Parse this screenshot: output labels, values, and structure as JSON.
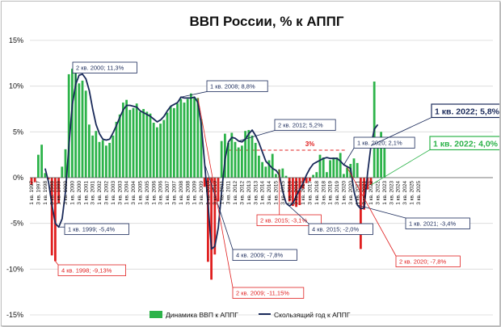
{
  "chart_data": {
    "type": "bar",
    "title": "ВВП России, % к АППГ",
    "ylim": [
      -15,
      15
    ],
    "y_ticks": [
      "-15%",
      "-10%",
      "-5%",
      "0%",
      "5%",
      "10%",
      "15%"
    ],
    "y_tick_values": [
      -15,
      -10,
      -5,
      0,
      5,
      10,
      15
    ],
    "grid": true,
    "legend_position": "bottom",
    "x_start": "1 кв. 1997",
    "x_tick_labels": [
      "1 кв. 1997",
      "3 кв. 1997",
      "1 кв. 1998",
      "3 кв. 1998",
      "1 кв. 1999",
      "3 кв. 1999",
      "1 кв. 2000",
      "3 кв. 2000",
      "1 кв. 2001",
      "3 кв. 2001",
      "1 кв. 2002",
      "3 кв. 2002",
      "1 кв. 2003",
      "3 кв. 2003",
      "1 кв. 2004",
      "3 кв. 2004",
      "1 кв. 2005",
      "3 кв. 2005",
      "1 кв. 2006",
      "3 кв. 2006",
      "1 кв. 2007",
      "3 кв. 2007",
      "1 кв. 2008",
      "3 кв. 2008",
      "1 кв. 2009",
      "3 кв. 2009",
      "1 кв. 2010",
      "3 кв. 2010",
      "1 кв. 2011",
      "3 кв. 2011",
      "1 кв. 2012",
      "3 кв. 2012",
      "1 кв. 2013",
      "3 кв. 2013",
      "1 кв. 2014",
      "3 кв. 2014",
      "1 кв. 2015",
      "3 кв. 2015",
      "1 кв. 2016",
      "3 кв. 2016",
      "1 кв. 2017",
      "3 кв. 2017",
      "1 кв. 2018",
      "3 кв. 2018",
      "1 кв. 2019",
      "3 кв. 2019",
      "1 кв. 2020",
      "3 кв. 2020",
      "1 кв. 2021",
      "3 кв. 2021",
      "1 кв. 2022",
      "3 кв. 2022",
      "1 кв. 2023",
      "3 кв. 2023",
      "1 кв. 2024",
      "3 кв. 2024",
      "1 кв. 2025",
      "3 кв. 2025"
    ],
    "series": [
      {
        "name": "Динамика ВВП к АППГ",
        "kind": "bar",
        "color_positive": "#2db34a",
        "color_negative": "#e02020",
        "values": [
          -0.8,
          -0.5,
          2.5,
          3.6,
          0.5,
          -0.2,
          -8.5,
          -9.13,
          -2.8,
          1.2,
          3.1,
          11.3,
          11.9,
          11.4,
          10.3,
          10.6,
          9.5,
          5.8,
          4.6,
          5.1,
          3.9,
          4.1,
          3.5,
          3.8,
          4.6,
          6.1,
          6.9,
          8.2,
          8.5,
          7.4,
          7.6,
          8.1,
          7.2,
          7.5,
          7.2,
          7.0,
          6.0,
          5.5,
          5.9,
          6.3,
          7.1,
          7.8,
          7.6,
          8.1,
          8.6,
          8.2,
          8.6,
          9.2,
          8.8,
          8.7,
          6.4,
          -1.0,
          -9.2,
          -11.15,
          -8.4,
          -2.6,
          4.0,
          4.8,
          3.8,
          4.9,
          3.9,
          3.3,
          3.5,
          5.1,
          5.2,
          4.6,
          3.8,
          2.4,
          1.7,
          1.2,
          1.9,
          2.6,
          0.4,
          0.9,
          1.0,
          0.2,
          -2.6,
          -3.1,
          -3.2,
          -3.0,
          -1.2,
          -0.6,
          -0.4,
          0.3,
          0.6,
          2.5,
          2.2,
          0.6,
          1.9,
          2.2,
          2.2,
          2.7,
          0.4,
          1.1,
          1.5,
          2.1,
          1.6,
          -7.8,
          -3.5,
          -1.3,
          -0.8,
          10.5,
          4.0,
          5.0,
          4.0,
          null,
          null,
          null,
          null,
          null,
          null,
          null,
          null,
          null,
          null,
          null,
          null,
          null,
          null,
          null
        ]
      },
      {
        "name": "Скользящий год к АППГ",
        "kind": "line",
        "color": "#1a2a5a",
        "values": [
          null,
          null,
          null,
          null,
          1.0,
          -0.5,
          -3.0,
          -5.0,
          -5.4,
          -4.5,
          -1.5,
          3.5,
          8.0,
          10.2,
          11.2,
          11.3,
          10.8,
          9.5,
          7.5,
          5.8,
          4.8,
          4.2,
          4.1,
          4.2,
          4.9,
          5.7,
          6.6,
          7.4,
          7.9,
          7.9,
          7.8,
          7.7,
          7.3,
          7.1,
          6.9,
          6.7,
          6.4,
          6.1,
          6.3,
          6.7,
          7.3,
          7.8,
          8.0,
          8.2,
          8.8,
          8.7,
          8.7,
          8.7,
          8.8,
          8.2,
          5.8,
          1.5,
          -3.0,
          -7.8,
          -7.5,
          -5.5,
          -1.5,
          2.0,
          3.9,
          4.4,
          4.3,
          4.0,
          3.9,
          4.2,
          4.8,
          5.2,
          4.6,
          3.8,
          2.8,
          1.8,
          1.4,
          1.0,
          0.8,
          0.3,
          -1.5,
          -2.8,
          -3.1,
          -2.8,
          -2.0,
          -1.3,
          -0.6,
          0.3,
          1.0,
          1.5,
          1.7,
          1.9,
          2.1,
          2.2,
          2.1,
          2.1,
          2.1,
          1.8,
          1.4,
          1.2,
          1.0,
          -1.5,
          -3.0,
          -3.4,
          -3.3,
          0.5,
          3.5,
          5.3,
          5.8,
          null,
          null,
          null,
          null,
          null,
          null,
          null,
          null,
          null,
          null,
          null,
          null,
          null,
          null,
          null,
          null
        ]
      }
    ],
    "reference_line": {
      "value": 3,
      "label": "3%",
      "color": "#e02020"
    },
    "annotations": [
      {
        "text": "2 кв. 2000; 11,3%",
        "series": 1,
        "index": 13,
        "color": "#1a2a5a"
      },
      {
        "text": "1 кв. 2008; 8,8%",
        "series": 1,
        "index": 44,
        "color": "#1a2a5a"
      },
      {
        "text": "2 кв. 2012; 5,2%",
        "series": 1,
        "index": 61,
        "color": "#1a2a5a"
      },
      {
        "text": "1 кв. 2020; 2,1%",
        "series": 1,
        "index": 92,
        "color": "#1a2a5a"
      },
      {
        "text": "1 кв. 2022; 5,8%",
        "series": 1,
        "index": 100,
        "color": "#1a2a5a"
      },
      {
        "text": "1 кв. 2022; 4,0%",
        "series": 0,
        "index": 100,
        "color": "#2db34a"
      },
      {
        "text": "1 кв. 1999; -5,4%",
        "series": 1,
        "index": 8,
        "color": "#1a2a5a"
      },
      {
        "text": "4 кв. 1998; -9,13%",
        "series": 0,
        "index": 7,
        "color": "#e02020"
      },
      {
        "text": "4 кв. 2009; -7,8%",
        "series": 1,
        "index": 51,
        "color": "#1a2a5a"
      },
      {
        "text": "2 кв. 2009; -11,15%",
        "series": 0,
        "index": 49,
        "color": "#e02020"
      },
      {
        "text": "2 кв. 2015; -3,1%",
        "series": 0,
        "index": 73,
        "color": "#e02020"
      },
      {
        "text": "4 кв. 2015; -2,0%",
        "series": 1,
        "index": 75,
        "color": "#1a2a5a"
      },
      {
        "text": "1 кв. 2021; -3,4%",
        "series": 1,
        "index": 96,
        "color": "#1a2a5a"
      },
      {
        "text": "2 кв. 2020; -7,8%",
        "series": 0,
        "index": 93,
        "color": "#e02020"
      }
    ]
  }
}
